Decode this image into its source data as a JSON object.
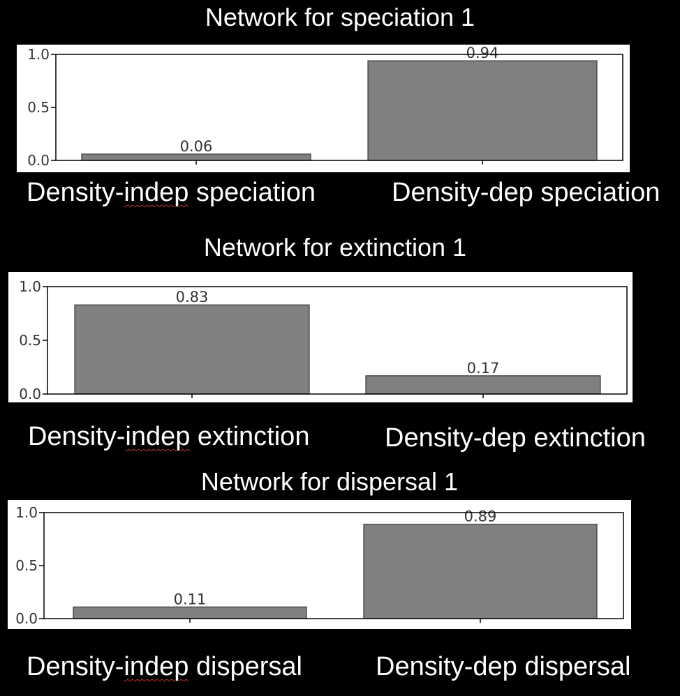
{
  "chart_data": [
    {
      "type": "bar",
      "title": "Network for speciation 1",
      "categories": [
        "Density-indep speciation",
        "Density-dep speciation"
      ],
      "values": [
        0.06,
        0.94
      ],
      "value_labels": [
        "0.06",
        "0.94"
      ],
      "yticks": [
        "0.0",
        "0.5",
        "1.0"
      ],
      "ylim": [
        0,
        1.0
      ],
      "bar_color": "#808080",
      "grid": false
    },
    {
      "type": "bar",
      "title": "Network for extinction 1",
      "categories": [
        "Density-indep extinction",
        "Density-dep extinction"
      ],
      "values": [
        0.83,
        0.17
      ],
      "value_labels": [
        "0.83",
        "0.17"
      ],
      "yticks": [
        "0.0",
        "0.5",
        "1.0"
      ],
      "ylim": [
        0,
        1.0
      ],
      "bar_color": "#808080",
      "grid": false
    },
    {
      "type": "bar",
      "title": "Network for dispersal 1",
      "categories": [
        "Density-indep dispersal",
        "Density-dep dispersal"
      ],
      "values": [
        0.11,
        0.89
      ],
      "value_labels": [
        "0.11",
        "0.89"
      ],
      "yticks": [
        "0.0",
        "0.5",
        "1.0"
      ],
      "ylim": [
        0,
        1.0
      ],
      "bar_color": "#808080",
      "grid": false
    }
  ]
}
